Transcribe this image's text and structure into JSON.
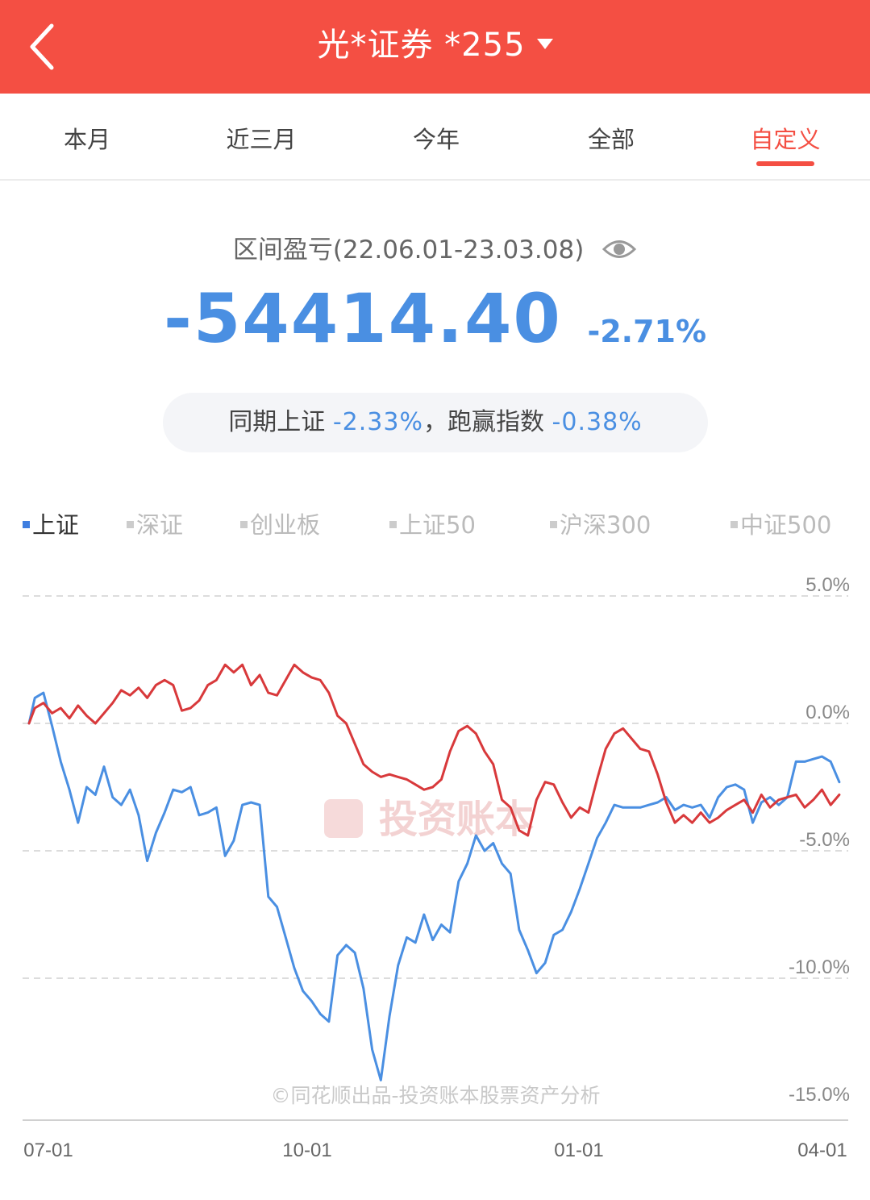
{
  "header": {
    "title": "光*证券 *255"
  },
  "tabs": [
    {
      "label": "本月"
    },
    {
      "label": "近三月"
    },
    {
      "label": "今年"
    },
    {
      "label": "全部"
    },
    {
      "label": "自定义"
    }
  ],
  "summary": {
    "period_label": "区间盈亏(22.06.01-23.03.08)",
    "amount": "-54414.40",
    "percent": "-2.71%",
    "compare_prefix": "同期上证",
    "compare_value": "-2.33%",
    "compare_mid": "，跑赢指数",
    "compare_beat": "-0.38%"
  },
  "legend": [
    {
      "label": "上证",
      "active": true
    },
    {
      "label": "深证",
      "active": false
    },
    {
      "label": "创业板",
      "active": false
    },
    {
      "label": "上证50",
      "active": false
    },
    {
      "label": "沪深300",
      "active": false
    },
    {
      "label": "中证500",
      "active": false
    }
  ],
  "chart_data": {
    "type": "line",
    "y_ticks": [
      "5.0%",
      "0.0%",
      "-5.0%",
      "-10.0%",
      "-15.0%"
    ],
    "ylim": [
      -15,
      5
    ],
    "x_ticks": [
      "07-01",
      "10-01",
      "01-01",
      "04-01"
    ],
    "watermark": "投资账本",
    "footer_text": "©同花顺出品-投资账本股票资产分析",
    "colors": {
      "account": "#d8393b",
      "index": "#4a8fe2"
    },
    "series": [
      {
        "key": "account",
        "points": [
          [
            "06-01",
            0.0
          ],
          [
            "06-03",
            0.6
          ],
          [
            "06-06",
            0.8
          ],
          [
            "06-09",
            0.4
          ],
          [
            "06-12",
            0.6
          ],
          [
            "06-15",
            0.2
          ],
          [
            "06-18",
            0.7
          ],
          [
            "06-21",
            0.3
          ],
          [
            "06-24",
            0.0
          ],
          [
            "06-27",
            0.4
          ],
          [
            "06-30",
            0.8
          ],
          [
            "07-03",
            1.3
          ],
          [
            "07-06",
            1.1
          ],
          [
            "07-09",
            1.4
          ],
          [
            "07-12",
            1.0
          ],
          [
            "07-15",
            1.5
          ],
          [
            "07-18",
            1.7
          ],
          [
            "07-21",
            1.5
          ],
          [
            "07-24",
            0.5
          ],
          [
            "07-27",
            0.6
          ],
          [
            "07-30",
            0.9
          ],
          [
            "08-02",
            1.5
          ],
          [
            "08-05",
            1.7
          ],
          [
            "08-08",
            2.3
          ],
          [
            "08-11",
            2.0
          ],
          [
            "08-14",
            2.3
          ],
          [
            "08-17",
            1.5
          ],
          [
            "08-20",
            1.9
          ],
          [
            "08-23",
            1.2
          ],
          [
            "08-26",
            1.1
          ],
          [
            "08-29",
            1.7
          ],
          [
            "09-01",
            2.3
          ],
          [
            "09-04",
            2.0
          ],
          [
            "09-07",
            1.8
          ],
          [
            "09-10",
            1.7
          ],
          [
            "09-13",
            1.2
          ],
          [
            "09-16",
            0.3
          ],
          [
            "09-19",
            0.0
          ],
          [
            "09-22",
            -0.8
          ],
          [
            "09-25",
            -1.6
          ],
          [
            "09-28",
            -1.9
          ],
          [
            "10-01",
            -2.1
          ],
          [
            "10-04",
            -2.0
          ],
          [
            "10-07",
            -2.1
          ],
          [
            "10-10",
            -2.2
          ],
          [
            "10-13",
            -2.4
          ],
          [
            "10-16",
            -2.6
          ],
          [
            "10-19",
            -2.5
          ],
          [
            "10-22",
            -2.2
          ],
          [
            "10-25",
            -1.1
          ],
          [
            "10-28",
            -0.3
          ],
          [
            "10-31",
            -0.1
          ],
          [
            "11-03",
            -0.4
          ],
          [
            "11-06",
            -1.1
          ],
          [
            "11-09",
            -1.6
          ],
          [
            "11-12",
            -3.0
          ],
          [
            "11-15",
            -3.3
          ],
          [
            "11-18",
            -4.2
          ],
          [
            "11-21",
            -4.4
          ],
          [
            "11-24",
            -3.0
          ],
          [
            "11-27",
            -2.3
          ],
          [
            "11-30",
            -2.4
          ],
          [
            "12-03",
            -3.1
          ],
          [
            "12-06",
            -3.7
          ],
          [
            "12-09",
            -3.3
          ],
          [
            "12-12",
            -3.5
          ],
          [
            "12-15",
            -2.2
          ],
          [
            "12-18",
            -1.0
          ],
          [
            "12-21",
            -0.4
          ],
          [
            "12-24",
            -0.2
          ],
          [
            "12-27",
            -0.6
          ],
          [
            "12-30",
            -1.0
          ],
          [
            "01-02",
            -1.1
          ],
          [
            "01-05",
            -2.0
          ],
          [
            "01-08",
            -3.1
          ],
          [
            "01-11",
            -3.9
          ],
          [
            "01-14",
            -3.6
          ],
          [
            "01-17",
            -3.9
          ],
          [
            "01-20",
            -3.5
          ],
          [
            "01-23",
            -3.9
          ],
          [
            "01-26",
            -3.7
          ],
          [
            "01-29",
            -3.4
          ],
          [
            "02-01",
            -3.2
          ],
          [
            "02-04",
            -3.0
          ],
          [
            "02-07",
            -3.5
          ],
          [
            "02-10",
            -2.8
          ],
          [
            "02-13",
            -3.3
          ],
          [
            "02-16",
            -3.0
          ],
          [
            "02-19",
            -2.9
          ],
          [
            "02-22",
            -2.8
          ],
          [
            "02-25",
            -3.3
          ],
          [
            "02-28",
            -3.0
          ],
          [
            "03-03",
            -2.6
          ],
          [
            "03-06",
            -3.2
          ],
          [
            "03-09",
            -2.8
          ]
        ]
      },
      {
        "key": "index",
        "points": [
          [
            "06-01",
            0.0
          ],
          [
            "06-03",
            1.0
          ],
          [
            "06-06",
            1.2
          ],
          [
            "06-09",
            -0.1
          ],
          [
            "06-12",
            -1.5
          ],
          [
            "06-15",
            -2.6
          ],
          [
            "06-18",
            -3.9
          ],
          [
            "06-21",
            -2.5
          ],
          [
            "06-24",
            -2.8
          ],
          [
            "06-27",
            -1.7
          ],
          [
            "06-30",
            -2.9
          ],
          [
            "07-03",
            -3.2
          ],
          [
            "07-06",
            -2.6
          ],
          [
            "07-09",
            -3.6
          ],
          [
            "07-12",
            -5.4
          ],
          [
            "07-15",
            -4.3
          ],
          [
            "07-18",
            -3.5
          ],
          [
            "07-21",
            -2.6
          ],
          [
            "07-24",
            -2.7
          ],
          [
            "07-27",
            -2.5
          ],
          [
            "07-30",
            -3.6
          ],
          [
            "08-02",
            -3.5
          ],
          [
            "08-05",
            -3.3
          ],
          [
            "08-08",
            -5.2
          ],
          [
            "08-11",
            -4.6
          ],
          [
            "08-14",
            -3.2
          ],
          [
            "08-17",
            -3.1
          ],
          [
            "08-20",
            -3.2
          ],
          [
            "08-23",
            -6.8
          ],
          [
            "08-26",
            -7.2
          ],
          [
            "08-29",
            -8.4
          ],
          [
            "09-01",
            -9.6
          ],
          [
            "09-04",
            -10.5
          ],
          [
            "09-07",
            -10.9
          ],
          [
            "09-10",
            -11.4
          ],
          [
            "09-13",
            -11.7
          ],
          [
            "09-16",
            -9.1
          ],
          [
            "09-19",
            -8.7
          ],
          [
            "09-22",
            -9.0
          ],
          [
            "09-25",
            -10.4
          ],
          [
            "09-28",
            -12.8
          ],
          [
            "10-01",
            -14.0
          ],
          [
            "10-04",
            -11.5
          ],
          [
            "10-07",
            -9.5
          ],
          [
            "10-10",
            -8.4
          ],
          [
            "10-13",
            -8.6
          ],
          [
            "10-16",
            -7.5
          ],
          [
            "10-19",
            -8.5
          ],
          [
            "10-22",
            -7.9
          ],
          [
            "10-25",
            -8.2
          ],
          [
            "10-28",
            -6.2
          ],
          [
            "10-31",
            -5.5
          ],
          [
            "11-03",
            -4.4
          ],
          [
            "11-06",
            -5.0
          ],
          [
            "11-09",
            -4.7
          ],
          [
            "11-12",
            -5.5
          ],
          [
            "11-15",
            -5.9
          ],
          [
            "11-18",
            -8.1
          ],
          [
            "11-21",
            -8.9
          ],
          [
            "11-24",
            -9.8
          ],
          [
            "11-27",
            -9.4
          ],
          [
            "11-30",
            -8.3
          ],
          [
            "12-03",
            -8.1
          ],
          [
            "12-06",
            -7.4
          ],
          [
            "12-09",
            -6.5
          ],
          [
            "12-12",
            -5.5
          ],
          [
            "12-15",
            -4.5
          ],
          [
            "12-18",
            -3.9
          ],
          [
            "12-21",
            -3.2
          ],
          [
            "12-24",
            -3.3
          ],
          [
            "12-27",
            -3.3
          ],
          [
            "12-30",
            -3.3
          ],
          [
            "01-02",
            -3.2
          ],
          [
            "01-05",
            -3.1
          ],
          [
            "01-08",
            -2.9
          ],
          [
            "01-11",
            -3.4
          ],
          [
            "01-14",
            -3.2
          ],
          [
            "01-17",
            -3.3
          ],
          [
            "01-20",
            -3.2
          ],
          [
            "01-23",
            -3.7
          ],
          [
            "01-26",
            -2.9
          ],
          [
            "01-29",
            -2.5
          ],
          [
            "02-01",
            -2.4
          ],
          [
            "02-04",
            -2.6
          ],
          [
            "02-07",
            -3.9
          ],
          [
            "02-10",
            -3.1
          ],
          [
            "02-13",
            -2.9
          ],
          [
            "02-16",
            -3.2
          ],
          [
            "02-19",
            -2.9
          ],
          [
            "02-22",
            -1.5
          ],
          [
            "02-25",
            -1.5
          ],
          [
            "02-28",
            -1.4
          ],
          [
            "03-03",
            -1.3
          ],
          [
            "03-06",
            -1.5
          ],
          [
            "03-09",
            -2.3
          ]
        ]
      }
    ]
  }
}
